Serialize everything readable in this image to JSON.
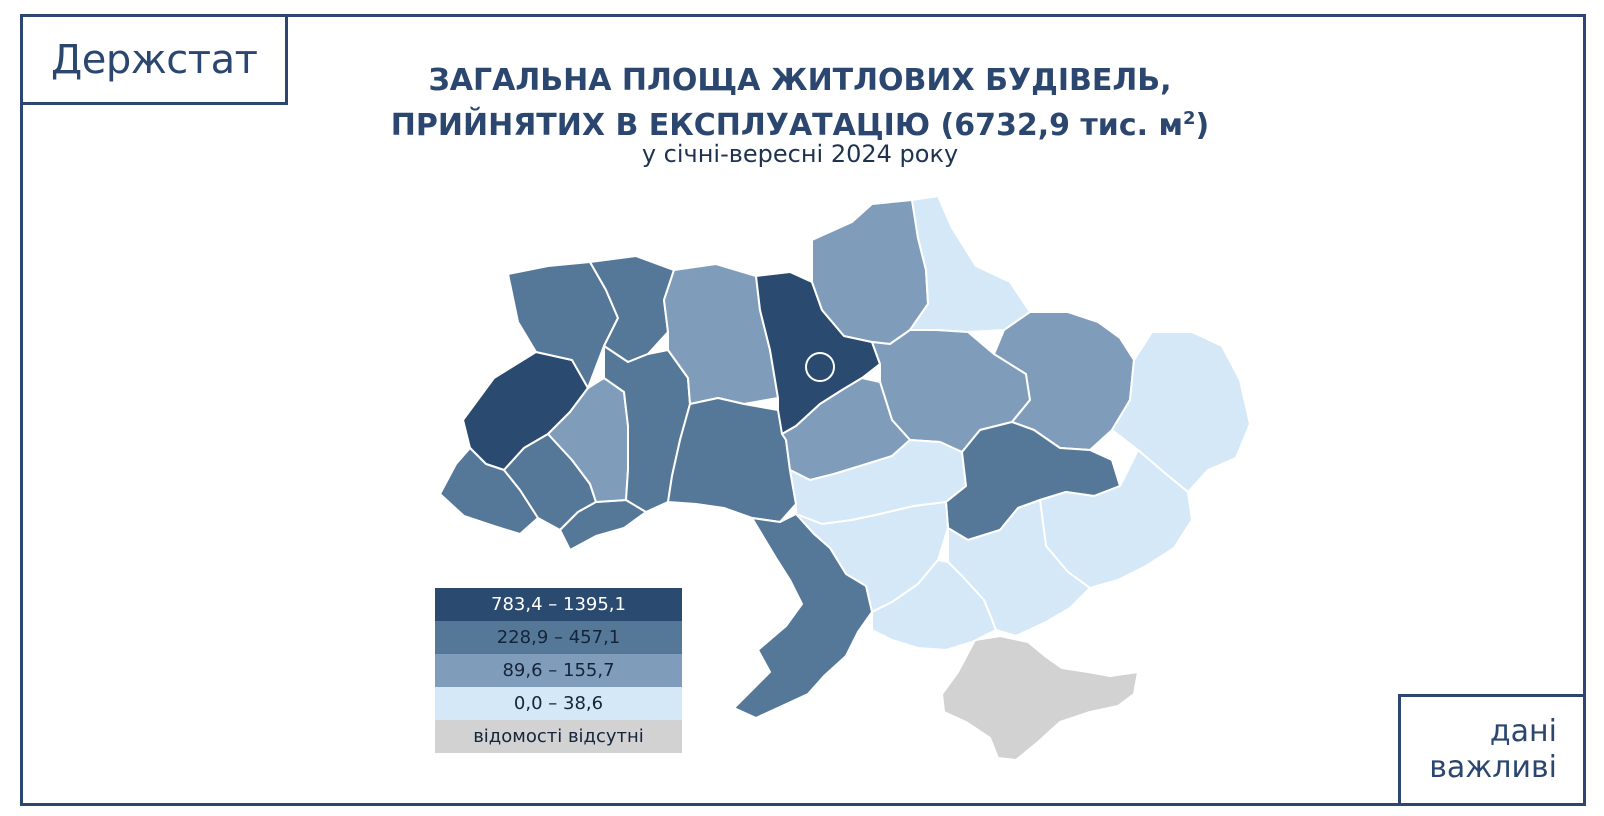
{
  "logo": "Держстат",
  "corner": {
    "line1": "дані",
    "line2": "важливі"
  },
  "title": {
    "line1": "ЗАГАЛЬНА ПЛОЩА ЖИТЛОВИХ БУДІВЕЛЬ,",
    "line2": "ПРИЙНЯТИХ В ЕКСПЛУАТАЦІЮ (6732,9 тис. м",
    "superscript": "2",
    "close": ")"
  },
  "subtitle": "у січні-вересні 2024 року",
  "colors": {
    "class1": "#2b4a70",
    "class2": "#567898",
    "class3": "#7f9dbb",
    "class4": "#d4e8f8",
    "nodata": "#d2d2d2"
  },
  "legend": [
    {
      "label": "783,4 – 1395,1",
      "color": "#2b4a70",
      "text_color": "#ffffff"
    },
    {
      "label": "228,9 – 457,1",
      "color": "#567898",
      "text_color": "#13243b"
    },
    {
      "label": "89,6 – 155,7",
      "color": "#7f9dbb",
      "text_color": "#13243b"
    },
    {
      "label": "0,0 – 38,6",
      "color": "#d4e8f8",
      "text_color": "#13243b"
    },
    {
      "label": "відомості відсутні",
      "color": "#d2d2d2",
      "text_color": "#13243b"
    }
  ],
  "capital_marker": "city-circle-icon"
}
